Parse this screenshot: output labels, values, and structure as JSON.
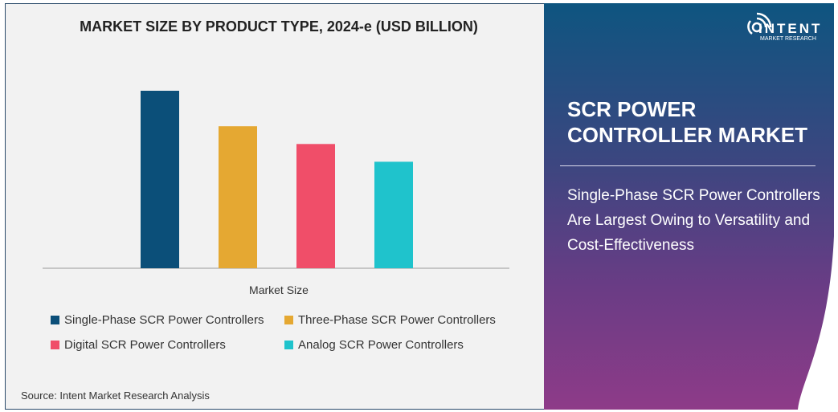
{
  "chart_data": {
    "type": "bar",
    "title": "MARKET SIZE BY PRODUCT TYPE, 2024-e (USD BILLION)",
    "xlabel": "Market Size",
    "ylabel": "",
    "categories": [
      "Market Size"
    ],
    "series": [
      {
        "name": "Single-Phase SCR Power Controllers",
        "values": [
          1.0
        ],
        "color": "#0b4f79"
      },
      {
        "name": "Three-Phase SCR Power Controllers",
        "values": [
          0.8
        ],
        "color": "#e5a832"
      },
      {
        "name": "Digital SCR Power Controllers",
        "values": [
          0.7
        ],
        "color": "#f04e69"
      },
      {
        "name": "Analog SCR Power Controllers",
        "values": [
          0.6
        ],
        "color": "#1fc3cc"
      }
    ],
    "ylim": [
      0,
      1.0
    ],
    "grid": false,
    "legend_placement": "bottom"
  },
  "source": "Source: Intent Market Research Analysis",
  "panel": {
    "logo_brand": "INTENT",
    "logo_sub": "MARKET RESEARCH",
    "title_line1": "SCR POWER",
    "title_line2": "CONTROLLER MARKET",
    "subtitle": "Single-Phase SCR Power Controllers Are Largest Owing to Versatility and Cost-Effectiveness"
  }
}
